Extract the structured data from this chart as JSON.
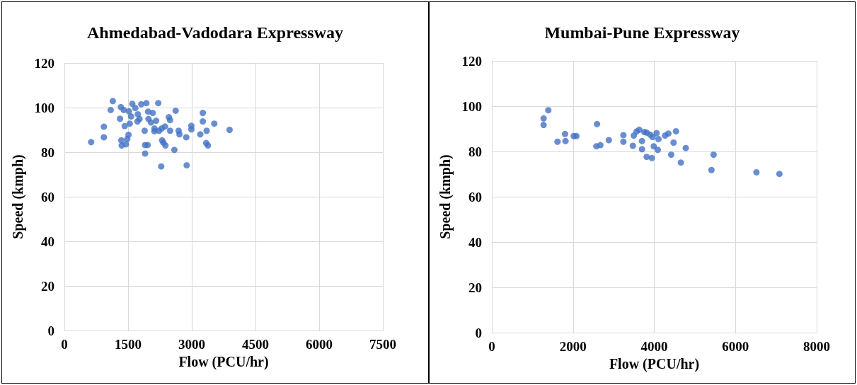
{
  "chart_data": [
    {
      "type": "scatter",
      "title": "Ahmedabad-Vadodara Expressway",
      "xlabel": "Flow (PCU/hr)",
      "ylabel": "Speed (kmph)",
      "xlim": [
        0,
        7500
      ],
      "xticks": [
        0,
        1500,
        3000,
        4500,
        6000,
        7500
      ],
      "ylim": [
        0,
        120
      ],
      "yticks": [
        0,
        20,
        40,
        60,
        80,
        100,
        120
      ],
      "grid": true,
      "marker": "circle",
      "series": [
        {
          "color": "#4472c4",
          "x": [
            630,
            930,
            930,
            1140,
            1090,
            1310,
            1330,
            1400,
            1420,
            1340,
            1350,
            1450,
            1480,
            1510,
            1540,
            1520,
            1600,
            1570,
            1670,
            1720,
            1730,
            1770,
            1810,
            1930,
            1890,
            1900,
            1960,
            1900,
            1970,
            2080,
            1980,
            2040,
            2160,
            2210,
            2120,
            2120,
            2230,
            2290,
            2370,
            2300,
            2330,
            2380,
            2280,
            2460,
            2490,
            2490,
            2620,
            2590,
            2690,
            2710,
            2870,
            2880,
            2990,
            2990,
            3200,
            3260,
            3260,
            3350,
            3340,
            3380,
            3530,
            3890
          ],
          "values": [
            84.5,
            91.4,
            86.7,
            102.9,
            98.9,
            95,
            100.2,
            98.9,
            91.7,
            85.3,
            83,
            83.5,
            85.9,
            87.8,
            92.8,
            98.3,
            101.7,
            96,
            99.8,
            93.8,
            97,
            94.9,
            101.5,
            102,
            89.6,
            83.2,
            83.2,
            79.4,
            98.2,
            97.6,
            94.9,
            93.3,
            94.1,
            102,
            90.6,
            89.4,
            89.6,
            90.6,
            91.5,
            85.3,
            84.3,
            83,
            73.6,
            95.7,
            94.4,
            89.6,
            98.6,
            81,
            89.6,
            88,
            86.7,
            74.1,
            91.8,
            90.2,
            88,
            97.6,
            93.8,
            89.6,
            84.1,
            83,
            92.8,
            90
          ]
        }
      ]
    },
    {
      "type": "scatter",
      "title": "Mumbai-Pune Expressway",
      "xlabel": "Flow (PCU/hr)",
      "ylabel": "Speed (kmph)",
      "xlim": [
        0,
        8000
      ],
      "xticks": [
        0,
        2000,
        4000,
        6000,
        8000
      ],
      "ylim": [
        0,
        120
      ],
      "yticks": [
        0,
        20,
        40,
        60,
        80,
        100,
        120
      ],
      "grid": true,
      "marker": "circle",
      "series": [
        {
          "color": "#4472c4",
          "x": [
            1390,
            1275,
            1275,
            1617,
            1803,
            1814,
            2017,
            2082,
            2591,
            2574,
            2673,
            2882,
            3240,
            3240,
            3473,
            3496,
            3565,
            3630,
            3699,
            3699,
            3757,
            3814,
            3901,
            3960,
            4058,
            4104,
            3814,
            3942,
            3988,
            4087,
            4267,
            4348,
            4535,
            4476,
            4417,
            4776,
            4656,
            5461,
            5409,
            6517,
            7083
          ],
          "values": [
            98.2,
            94.6,
            91.7,
            84.3,
            87.7,
            84.6,
            86.8,
            86.8,
            92.1,
            82.3,
            82.8,
            85,
            87.2,
            84.3,
            82.5,
            87,
            88.8,
            89.6,
            84.6,
            81,
            88.6,
            88.3,
            87.4,
            86.4,
            88.1,
            85.5,
            77.6,
            77.1,
            82.3,
            80.7,
            87,
            87.9,
            88.9,
            83.9,
            78.6,
            81.5,
            75.1,
            78.6,
            71.8,
            70.8,
            70.1
          ]
        }
      ]
    }
  ]
}
